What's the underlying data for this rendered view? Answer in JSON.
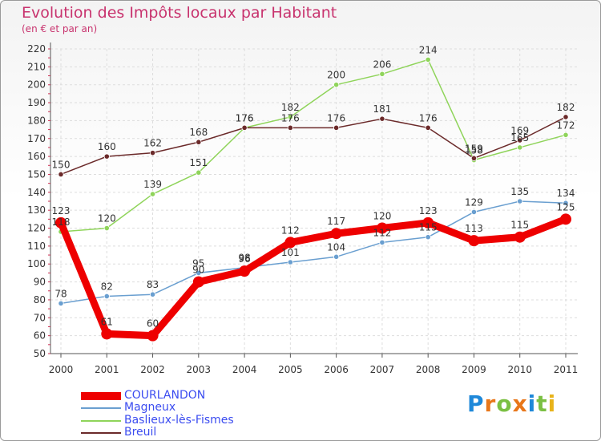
{
  "header": {
    "title": "Evolution des Impôts locaux par Habitant",
    "subtitle": "(en € et par an)"
  },
  "chart_data": {
    "type": "line",
    "title": "Evolution des Impôts locaux par Habitant",
    "subtitle": "(en € et par an)",
    "xlabel": "",
    "ylabel": "",
    "x": [
      "2000",
      "2001",
      "2002",
      "2003",
      "2004",
      "2005",
      "2006",
      "2007",
      "2008",
      "2009",
      "2010",
      "2011"
    ],
    "ylim": [
      50,
      220
    ],
    "yticks": [
      50,
      60,
      70,
      80,
      90,
      100,
      110,
      120,
      130,
      140,
      150,
      160,
      170,
      180,
      190,
      200,
      210,
      220
    ],
    "grid": true,
    "legend_position": "bottom-left",
    "series": [
      {
        "name": "COURLANDON",
        "color": "#ee0000",
        "values": [
          123,
          61,
          60,
          90,
          96,
          112,
          117,
          120,
          123,
          113,
          115,
          125
        ]
      },
      {
        "name": "Magneux",
        "color": "#6a9fd0",
        "values": [
          78,
          82,
          83,
          95,
          98,
          101,
          104,
          112,
          115,
          129,
          135,
          134
        ]
      },
      {
        "name": "Baslieux-lès-Fismes",
        "color": "#8fd45a",
        "values": [
          118,
          120,
          139,
          151,
          176,
          182,
          200,
          206,
          214,
          158,
          165,
          172
        ]
      },
      {
        "name": "Breuil",
        "color": "#6b2a2a",
        "values": [
          150,
          160,
          162,
          168,
          176,
          176,
          176,
          181,
          176,
          159,
          169,
          182
        ]
      }
    ]
  },
  "logo": {
    "letters": [
      "P",
      "r",
      "o",
      "x",
      "i",
      "t",
      "i"
    ],
    "colors": [
      "#1e88d9",
      "#e8771a",
      "#7bc043",
      "#e8771a",
      "#1e88d9",
      "#7bc043",
      "#e8b31a"
    ]
  }
}
